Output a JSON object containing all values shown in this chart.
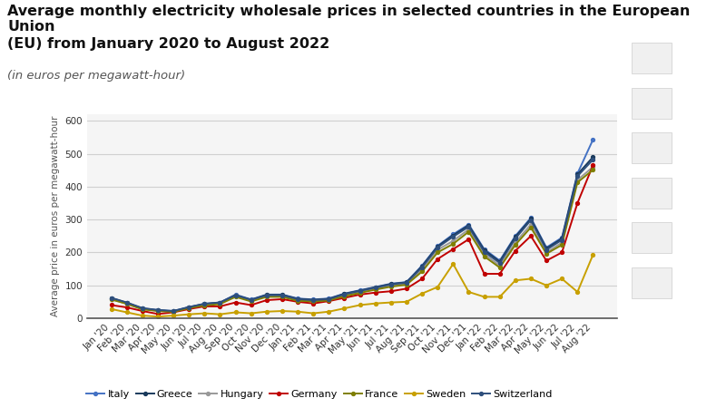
{
  "title_line1": "Average monthly electricity wholesale prices in selected countries in the European Union",
  "title_line2": "(EU) from January 2020 to August 2022",
  "subtitle": "(in euros per megawatt-hour)",
  "ylabel": "Average price in euros per megawatt-hour",
  "ylim": [
    0,
    620
  ],
  "yticks": [
    0,
    100,
    200,
    300,
    400,
    500,
    600
  ],
  "background_color": "#ffffff",
  "plot_bg_color": "#f5f5f5",
  "grid_color": "#d0d0d0",
  "x_labels": [
    "Jan '20",
    "Feb '20",
    "Mar '20",
    "Apr '20",
    "May '20",
    "Jun '20",
    "Jul '20",
    "Aug '20",
    "Sep '20",
    "Oct '20",
    "Nov '20",
    "Dec '20",
    "Jan '21",
    "Feb '21",
    "Mar '21",
    "Apr '21",
    "May '21",
    "Jun '21",
    "Jul '21",
    "Aug '21",
    "Sep '21",
    "Oct '21",
    "Nov '21",
    "Dec '21",
    "Jan '22",
    "Feb '22",
    "Mar '22",
    "Apr '22",
    "May '22",
    "Jun '22",
    "Jul '22",
    "Aug '22"
  ],
  "series": [
    {
      "name": "Italy",
      "color": "#4472c4",
      "data": [
        62,
        47,
        30,
        25,
        22,
        34,
        44,
        48,
        72,
        57,
        72,
        72,
        60,
        57,
        60,
        75,
        85,
        95,
        105,
        110,
        160,
        220,
        255,
        285,
        210,
        175,
        250,
        305,
        215,
        245,
        440,
        543
      ]
    },
    {
      "name": "Greece",
      "color": "#1a3a5c",
      "data": [
        61,
        46,
        29,
        24,
        21,
        33,
        43,
        47,
        70,
        56,
        71,
        71,
        59,
        56,
        59,
        74,
        84,
        94,
        104,
        109,
        158,
        218,
        252,
        282,
        207,
        172,
        247,
        302,
        212,
        242,
        437,
        490
      ]
    },
    {
      "name": "Hungary",
      "color": "#999999",
      "data": [
        58,
        44,
        28,
        23,
        20,
        32,
        42,
        46,
        68,
        53,
        68,
        68,
        56,
        53,
        56,
        70,
        80,
        90,
        100,
        105,
        148,
        208,
        235,
        270,
        195,
        160,
        230,
        285,
        200,
        230,
        420,
        460
      ]
    },
    {
      "name": "Germany",
      "color": "#c00000",
      "data": [
        40,
        33,
        22,
        13,
        18,
        28,
        36,
        36,
        48,
        40,
        55,
        58,
        50,
        45,
        52,
        62,
        72,
        78,
        82,
        90,
        120,
        180,
        210,
        240,
        135,
        135,
        205,
        250,
        175,
        200,
        350,
        465
      ]
    },
    {
      "name": "France",
      "color": "#7f7f00",
      "data": [
        57,
        44,
        27,
        22,
        19,
        31,
        39,
        43,
        65,
        51,
        65,
        65,
        53,
        51,
        54,
        67,
        77,
        87,
        96,
        102,
        142,
        200,
        226,
        263,
        188,
        154,
        223,
        276,
        196,
        223,
        413,
        451
      ]
    },
    {
      "name": "Sweden",
      "color": "#c8a000",
      "data": [
        28,
        18,
        8,
        5,
        8,
        12,
        15,
        12,
        18,
        15,
        20,
        22,
        20,
        15,
        20,
        30,
        40,
        45,
        48,
        50,
        75,
        95,
        165,
        80,
        65,
        65,
        115,
        120,
        100,
        120,
        80,
        193
      ]
    },
    {
      "name": "Switzerland",
      "color": "#2e4f7c",
      "data": [
        62,
        48,
        31,
        25,
        22,
        34,
        44,
        48,
        70,
        56,
        70,
        70,
        58,
        55,
        58,
        73,
        83,
        93,
        103,
        108,
        155,
        215,
        248,
        278,
        202,
        168,
        242,
        298,
        208,
        238,
        432,
        482
      ]
    }
  ],
  "title_fontsize": 11.5,
  "subtitle_fontsize": 9.5,
  "tick_fontsize": 7.5,
  "label_fontsize": 7.5,
  "legend_fontsize": 8
}
